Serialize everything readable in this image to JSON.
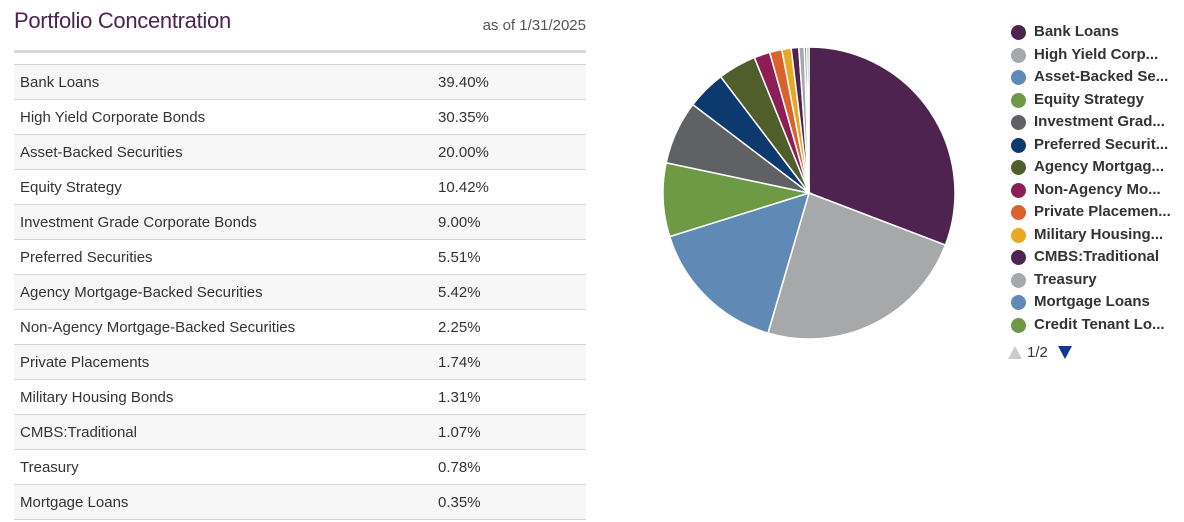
{
  "header": {
    "title": "Portfolio Concentration",
    "as_of": "as of 1/31/2025"
  },
  "table": {
    "rows": [
      {
        "name": "Bank Loans",
        "value": "39.40%"
      },
      {
        "name": "High Yield Corporate Bonds",
        "value": "30.35%"
      },
      {
        "name": "Asset-Backed Securities",
        "value": "20.00%"
      },
      {
        "name": "Equity Strategy",
        "value": "10.42%"
      },
      {
        "name": "Investment Grade Corporate Bonds",
        "value": "9.00%"
      },
      {
        "name": "Preferred Securities",
        "value": "5.51%"
      },
      {
        "name": "Agency Mortgage-Backed Securities",
        "value": "5.42%"
      },
      {
        "name": "Non-Agency Mortgage-Backed Securities",
        "value": "2.25%"
      },
      {
        "name": "Private Placements",
        "value": "1.74%"
      },
      {
        "name": "Military Housing Bonds",
        "value": "1.31%"
      },
      {
        "name": "CMBS:Traditional",
        "value": "1.07%"
      },
      {
        "name": "Treasury",
        "value": "0.78%"
      },
      {
        "name": "Mortgage Loans",
        "value": "0.35%"
      }
    ]
  },
  "chart_data": {
    "type": "pie",
    "categories": [
      "Bank Loans",
      "High Yield Corporate Bonds",
      "Asset-Backed Securities",
      "Equity Strategy",
      "Investment Grade Corporate Bonds",
      "Preferred Securities",
      "Agency Mortgage-Backed Securities",
      "Non-Agency Mortgage-Backed Securities",
      "Private Placements",
      "Military Housing Bonds",
      "CMBS:Traditional",
      "Treasury",
      "Mortgage Loans",
      "Credit Tenant Loans"
    ],
    "values": [
      39.4,
      30.35,
      20.0,
      10.42,
      9.0,
      5.51,
      5.42,
      2.25,
      1.74,
      1.31,
      1.07,
      0.78,
      0.35,
      0.3
    ],
    "colors": [
      "#4e2350",
      "#a7a8aa",
      "#5f8ab5",
      "#6f9a45",
      "#5f6165",
      "#0d3a6e",
      "#4f5e2b",
      "#8c1d55",
      "#d9632a",
      "#e8a823",
      "#4e2350",
      "#a7a8aa",
      "#5f8ab5",
      "#6f9a45"
    ],
    "legend_position": "right",
    "legend_labels": [
      "Bank Loans",
      "High Yield Corp...",
      "Asset-Backed Se...",
      "Equity Strategy",
      "Investment Grad...",
      "Preferred Securit...",
      "Agency Mortgag...",
      "Non-Agency Mo...",
      "Private Placemen...",
      "Military Housing...",
      "CMBS:Traditional",
      "Treasury",
      "Mortgage Loans",
      "Credit Tenant Lo..."
    ],
    "pager": "1/2"
  }
}
